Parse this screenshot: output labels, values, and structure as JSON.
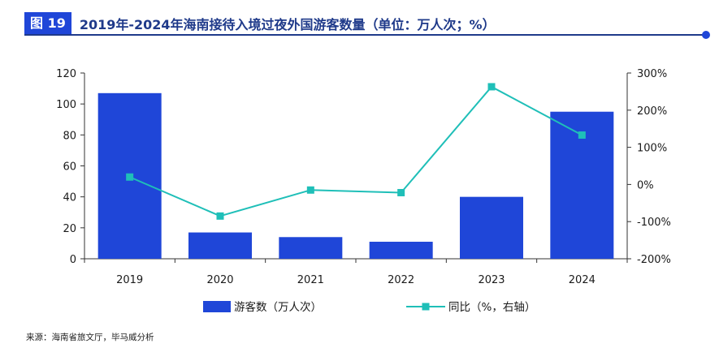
{
  "header": {
    "figure_label": "图 19",
    "title": "2019年-2024年海南接待入境过夜外国游客数量（单位：万人次；%）"
  },
  "source": "来源：海南省旅文厅，毕马威分析",
  "colors": {
    "bar": "#1f46d8",
    "line": "#1fbfb8",
    "title": "#1f3a8a",
    "badge": "#1f46d8"
  },
  "chart_data": {
    "type": "bar",
    "categories": [
      "2019",
      "2020",
      "2021",
      "2022",
      "2023",
      "2024"
    ],
    "series": [
      {
        "name": "游客数（万人次）",
        "type": "bar",
        "axis": "left",
        "values": [
          107,
          17,
          14,
          11,
          40,
          95
        ]
      },
      {
        "name": "同比（%，右轴）",
        "type": "line",
        "axis": "right",
        "values": [
          20,
          -85,
          -15,
          -22,
          263,
          133
        ]
      }
    ],
    "ylim": [
      0,
      120
    ],
    "yticks": [
      "0",
      "20",
      "40",
      "60",
      "80",
      "100",
      "120"
    ],
    "y2lim": [
      -200,
      300
    ],
    "y2ticks": [
      "-200%",
      "-100%",
      "0%",
      "100%",
      "200%",
      "300%"
    ],
    "legend_position": "bottom"
  }
}
